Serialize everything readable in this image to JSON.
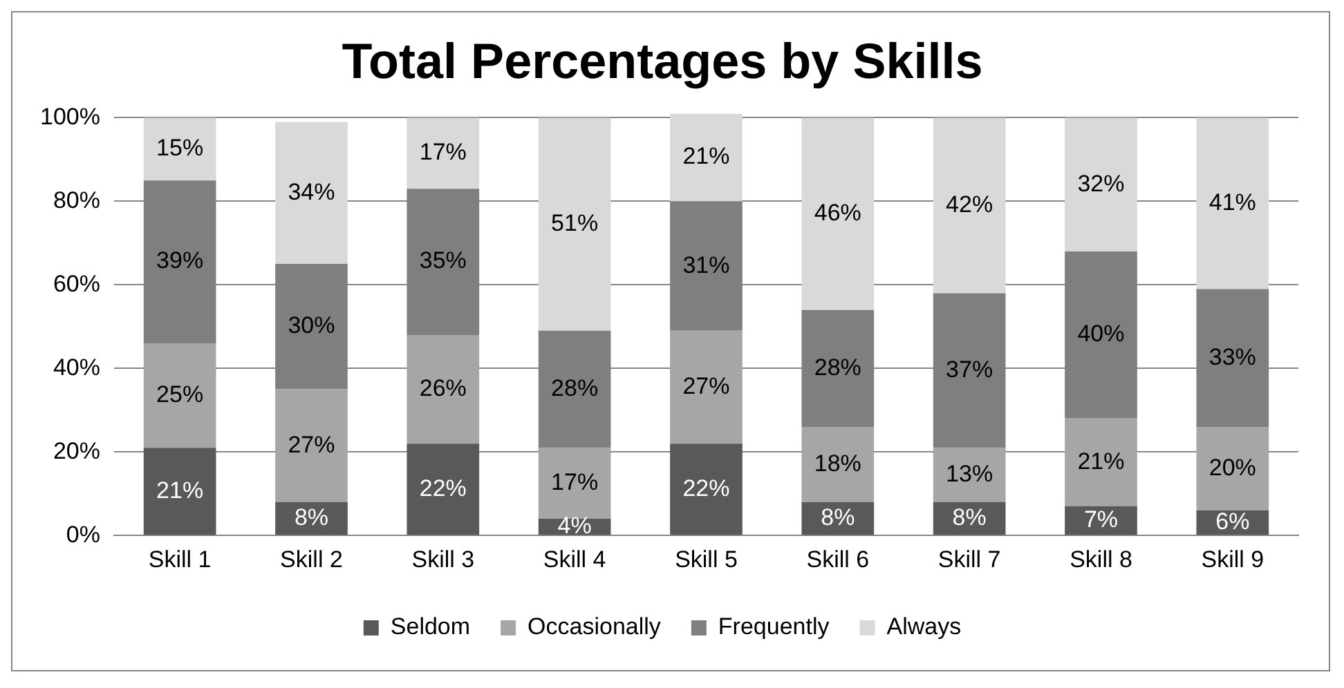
{
  "chart_data": {
    "type": "bar",
    "title": "Total Percentages by Skills",
    "stacked": true,
    "categories": [
      "Skill 1",
      "Skill 2",
      "Skill 3",
      "Skill 4",
      "Skill 5",
      "Skill 6",
      "Skill 7",
      "Skill 8",
      "Skill 9"
    ],
    "series": [
      {
        "name": "Seldom",
        "color": "#595959",
        "values": [
          21,
          8,
          22,
          4,
          22,
          8,
          8,
          7,
          6
        ],
        "value_labels": [
          "21%",
          "8%",
          "22%",
          "4%",
          "22%",
          "8%",
          "8%",
          "7%",
          "6%"
        ]
      },
      {
        "name": "Occasionally",
        "color": "#a6a6a6",
        "values": [
          25,
          27,
          26,
          17,
          27,
          18,
          13,
          21,
          20
        ],
        "value_labels": [
          "25%",
          "27%",
          "26%",
          "17%",
          "27%",
          "18%",
          "13%",
          "21%",
          "20%"
        ]
      },
      {
        "name": "Frequently",
        "color": "#7f7f7f",
        "values": [
          39,
          30,
          35,
          28,
          31,
          28,
          37,
          40,
          33
        ],
        "value_labels": [
          "39%",
          "30%",
          "35%",
          "28%",
          "31%",
          "28%",
          "37%",
          "40%",
          "33%"
        ]
      },
      {
        "name": "Always",
        "color": "#d9d9d9",
        "values": [
          15,
          34,
          17,
          51,
          21,
          46,
          42,
          32,
          41
        ],
        "value_labels": [
          "15%",
          "34%",
          "17%",
          "51%",
          "21%",
          "46%",
          "42%",
          "32%",
          "41%"
        ]
      }
    ],
    "ylim": [
      0,
      101
    ],
    "yticks": [
      {
        "value": 0,
        "label": "0%"
      },
      {
        "value": 20,
        "label": "20%"
      },
      {
        "value": 40,
        "label": "40%"
      },
      {
        "value": 60,
        "label": "60%"
      },
      {
        "value": 80,
        "label": "80%"
      },
      {
        "value": 100,
        "label": "100%"
      }
    ],
    "grid": "y",
    "legend": "bottom"
  }
}
